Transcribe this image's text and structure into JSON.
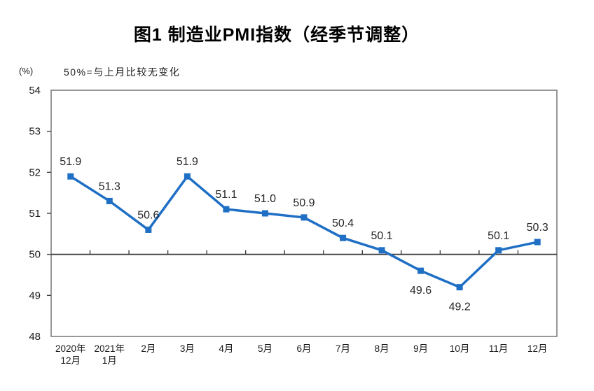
{
  "title": "图1 制造业PMI指数（经季节调整）",
  "y_axis_unit": "(%)",
  "note": "50%=与上月比较无变化",
  "colors": {
    "line": "#1f6fc5",
    "plot_border": "#7f7f7f",
    "axis": "#404040",
    "tick_text": "#1a1a1a",
    "data_label_text": "#262626",
    "background": "#ffffff"
  },
  "chart_data": {
    "type": "line",
    "title": "图1 制造业PMI指数（经季节调整）",
    "annotation": "50%=与上月比较无变化",
    "categories": [
      "2020年12月",
      "2021年1月",
      "2月",
      "3月",
      "4月",
      "5月",
      "6月",
      "7月",
      "8月",
      "9月",
      "10月",
      "11月",
      "12月"
    ],
    "values": [
      51.9,
      51.3,
      50.6,
      51.9,
      51.1,
      51.0,
      50.9,
      50.4,
      50.1,
      49.6,
      49.2,
      50.1,
      50.3
    ],
    "label_positions": [
      "above",
      "above",
      "above",
      "above",
      "above",
      "above",
      "above",
      "above",
      "above",
      "below",
      "below",
      "above",
      "above"
    ],
    "xlabel": "",
    "ylabel": "(%)",
    "ylim": [
      48,
      54
    ],
    "y_ticks": [
      48,
      49,
      50,
      51,
      52,
      53,
      54
    ],
    "reference_value": 50,
    "grid": false,
    "legend": "none",
    "marker": "square",
    "line_style": "solid"
  }
}
